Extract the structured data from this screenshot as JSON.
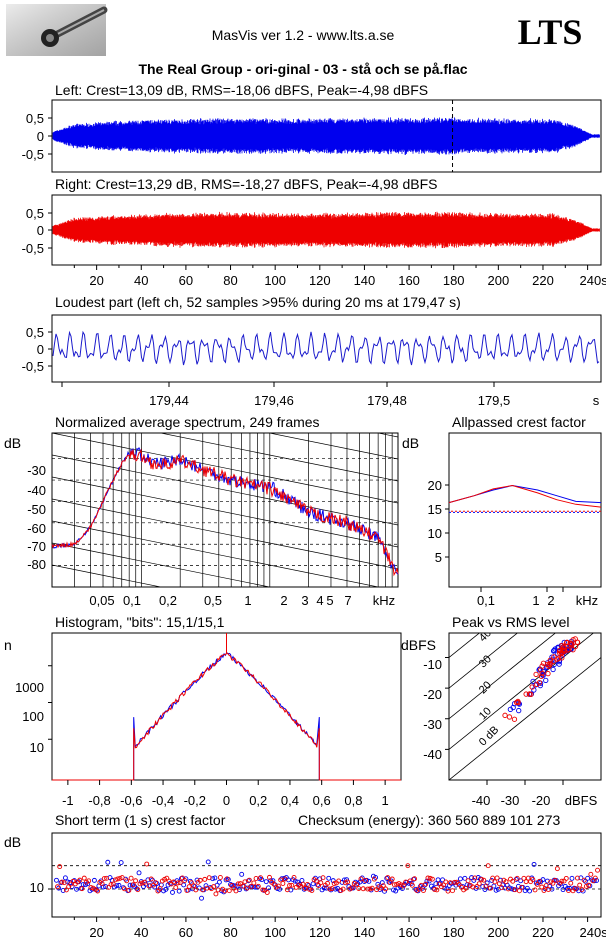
{
  "app_title": "MasVis ver 1.2 - www.lts.a.se",
  "logo_text": "LTS",
  "file_title": "The Real Group - ori-ginal - 03 - stå och se på.flac",
  "colors": {
    "left": "#0000ee",
    "right": "#ee0000",
    "waveform_blue": "#1a1acc"
  },
  "icon": "audio-plug-photo",
  "left_channel": {
    "label": "Left: Crest=13,09 dB, RMS=-18,06 dBFS, Peak=-4,98 dBFS",
    "crest_db": 13.09,
    "rms_dbfs": -18.06,
    "peak_dbfs": -4.98,
    "y_ticks": [
      "0,5",
      "0",
      "-0,5"
    ],
    "marker_time_s": 179.47
  },
  "right_channel": {
    "label": "Right: Crest=13,29 dB, RMS=-18,27 dBFS, Peak=-4,98 dBFS",
    "crest_db": 13.29,
    "rms_dbfs": -18.27,
    "peak_dbfs": -4.98,
    "y_ticks": [
      "0,5",
      "0",
      "-0,5"
    ],
    "x_ticks": [
      "20",
      "40",
      "60",
      "80",
      "100",
      "120",
      "140",
      "160",
      "180",
      "200",
      "220",
      "240s"
    ]
  },
  "loudest_part": {
    "label": "Loudest part (left  ch, 52 samples >95% during 20 ms at 179,47 s)",
    "y_ticks": [
      "0,5",
      "0",
      "-0,5"
    ],
    "x_ticks": [
      "179,44",
      "179,46",
      "179,48",
      "179,5",
      "s"
    ]
  },
  "spectrum": {
    "label": "Normalized average spectrum, 249 frames",
    "unit": "dB",
    "y_ticks": [
      "-30",
      "-40",
      "-50",
      "-60",
      "-70",
      "-80"
    ],
    "x_ticks": [
      "0,05",
      "0,1",
      "0,2",
      "0,5",
      "1",
      "2",
      "3",
      "4",
      "5",
      "7",
      "kHz"
    ]
  },
  "allpassed": {
    "label": "Allpassed crest factor",
    "unit": "dB",
    "y_ticks": [
      "20",
      "15",
      "10",
      "5"
    ],
    "x_ticks": [
      "0,1",
      "1",
      "2",
      "kHz"
    ]
  },
  "histogram": {
    "label": "Histogram, \"bits\": 15,1/15,1",
    "unit": "n",
    "y_ticks": [
      "1000",
      "100",
      "10"
    ],
    "x_ticks": [
      "-1",
      "-0,8",
      "-0,6",
      "-0,4",
      "-0,2",
      "0",
      "0,2",
      "0,4",
      "0,6",
      "0,8",
      "1"
    ]
  },
  "peak_rms": {
    "label": "Peak vs RMS level",
    "unit": "dBFS",
    "y_ticks": [
      "-10",
      "-20",
      "-30",
      "-40"
    ],
    "x_ticks": [
      "-40",
      "-30",
      "-20",
      "dBFS"
    ],
    "diag_labels": [
      "40",
      "30",
      "20",
      "10",
      "0 dB"
    ]
  },
  "crest_short": {
    "label": "Short term (1 s) crest factor",
    "unit": "dB",
    "checksum": "Checksum (energy):   360 560 889 101 273",
    "y_ticks": [
      "10"
    ],
    "x_ticks": [
      "20",
      "40",
      "60",
      "80",
      "100",
      "120",
      "140",
      "160",
      "180",
      "200",
      "220",
      "240s"
    ]
  },
  "chart_data": [
    {
      "type": "area",
      "title": "Left: Crest=13,09 dB, RMS=-18,06 dBFS, Peak=-4,98 dBFS",
      "xlabel": "s",
      "xlim": [
        0,
        246
      ],
      "ylim": [
        -1,
        1
      ],
      "series": [
        {
          "name": "Left",
          "envelope_x": [
            0,
            10,
            25,
            45,
            60,
            80,
            110,
            140,
            175,
            200,
            225,
            235,
            242
          ],
          "envelope_y": [
            0.12,
            0.35,
            0.42,
            0.48,
            0.5,
            0.52,
            0.5,
            0.52,
            0.54,
            0.5,
            0.5,
            0.3,
            0.05
          ]
        }
      ]
    },
    {
      "type": "area",
      "title": "Right: Crest=13,29 dB, RMS=-18,27 dBFS, Peak=-4,98 dBFS",
      "xlabel": "s",
      "xlim": [
        0,
        246
      ],
      "ylim": [
        -1,
        1
      ],
      "series": [
        {
          "name": "Right",
          "envelope_x": [
            0,
            10,
            25,
            45,
            60,
            80,
            110,
            140,
            175,
            200,
            225,
            235,
            242
          ],
          "envelope_y": [
            0.12,
            0.36,
            0.43,
            0.48,
            0.52,
            0.52,
            0.5,
            0.52,
            0.55,
            0.5,
            0.5,
            0.3,
            0.05
          ]
        }
      ]
    },
    {
      "type": "line",
      "title": "Loudest part (left  ch, 52 samples >95% during 20 ms at 179,47 s)",
      "xlim": [
        179.427,
        179.527
      ],
      "ylim": [
        -1,
        1
      ],
      "series": [
        {
          "name": "Left",
          "amplitude": 0.35
        }
      ]
    },
    {
      "type": "line",
      "title": "Normalized average spectrum, 249 frames",
      "ylabel": "dB",
      "xlabel": "kHz",
      "ylim": [
        -90,
        -18
      ],
      "x": [
        0.02,
        0.03,
        0.04,
        0.05,
        0.06,
        0.07,
        0.08,
        0.1,
        0.12,
        0.15,
        0.2,
        0.3,
        0.5,
        0.7,
        1,
        1.5,
        2,
        3,
        4,
        5,
        7,
        10
      ],
      "series": [
        {
          "name": "Left",
          "values": [
            -71,
            -70,
            -62,
            -50,
            -40,
            -32,
            -27,
            -28,
            -32,
            -32,
            -30,
            -35,
            -40,
            -42,
            -43,
            -50,
            -55,
            -58,
            -60,
            -63,
            -67,
            -85
          ]
        },
        {
          "name": "Right",
          "values": [
            -71,
            -70,
            -62,
            -50,
            -40,
            -32,
            -28,
            -29,
            -32,
            -33,
            -31,
            -35,
            -40,
            -42,
            -44,
            -50,
            -55,
            -58,
            -60,
            -63,
            -67,
            -85
          ]
        }
      ]
    },
    {
      "type": "line",
      "title": "Allpassed crest factor",
      "ylabel": "dB",
      "xlabel": "kHz",
      "ylim": [
        0,
        27
      ],
      "x": [
        0.02,
        0.05,
        0.1,
        0.2,
        0.5,
        1,
        2,
        5
      ],
      "series": [
        {
          "name": "Left",
          "values": [
            14.8,
            16,
            17,
            17.8,
            17,
            16,
            15,
            14.8
          ]
        },
        {
          "name": "Right",
          "values": [
            14.8,
            16,
            17.2,
            17.8,
            16.5,
            15.3,
            14.5,
            14
          ]
        },
        {
          "name": "Left",
          "values": [
            13.09,
            13.09,
            13.09,
            13.09,
            13.09,
            13.09,
            13.09,
            13.09
          ]
        },
        {
          "name": "Right",
          "values": [
            13.29,
            13.29,
            13.29,
            13.29,
            13.29,
            13.29,
            13.29,
            13.29
          ]
        }
      ]
    },
    {
      "type": "line",
      "title": "Histogram, \"bits\": 15,1/15,1",
      "ylabel": "n",
      "xlim": [
        -1.1,
        1.1
      ],
      "ylim": [
        1,
        10000
      ],
      "x": [
        -0.58,
        -0.5,
        -0.4,
        -0.3,
        -0.2,
        -0.1,
        0,
        0.1,
        0.2,
        0.3,
        0.4,
        0.5,
        0.58
      ],
      "series": [
        {
          "name": "Left",
          "values": [
            6,
            15,
            45,
            130,
            370,
            950,
            2200,
            950,
            370,
            130,
            45,
            15,
            6
          ]
        },
        {
          "name": "Right",
          "values": [
            6,
            15,
            45,
            130,
            370,
            950,
            2200,
            950,
            370,
            130,
            45,
            15,
            6
          ]
        }
      ]
    },
    {
      "type": "scatter",
      "title": "Peak vs RMS level",
      "xlabel": "dBFS",
      "ylabel": "dBFS",
      "xlim": [
        -50,
        -10
      ],
      "ylim": [
        -50,
        -2
      ],
      "series": [
        {
          "name": "Left",
          "x": [
            -33,
            -32,
            -28,
            -27,
            -26,
            -25,
            -24,
            -23,
            -22,
            -22,
            -21,
            -21,
            -20,
            -20,
            -19,
            -19,
            -18,
            -18
          ],
          "y": [
            -27,
            -25,
            -22,
            -19,
            -17,
            -15,
            -14,
            -12,
            -11,
            -10,
            -9,
            -8,
            -8,
            -7,
            -7,
            -6,
            -6,
            -5
          ]
        },
        {
          "name": "Right",
          "x": [
            -34,
            -31,
            -29,
            -27,
            -26,
            -25,
            -24,
            -23,
            -22,
            -21,
            -21,
            -20,
            -20,
            -19,
            -19,
            -18,
            -18,
            -17
          ],
          "y": [
            -29,
            -24,
            -21,
            -19,
            -16,
            -14,
            -13,
            -12,
            -10,
            -9,
            -8,
            -8,
            -7,
            -7,
            -6,
            -6,
            -5,
            -5
          ]
        }
      ]
    },
    {
      "type": "scatter",
      "title": "Short term (1 s) crest factor",
      "ylabel": "dB",
      "xlim": [
        0,
        246
      ],
      "ylim": [
        4,
        22
      ],
      "reference_lines": [
        15,
        10
      ],
      "series": [
        {
          "name": "Left",
          "typical": 11,
          "range": [
            8,
            16
          ]
        },
        {
          "name": "Right",
          "typical": 11,
          "range": [
            8,
            16
          ]
        }
      ]
    }
  ]
}
